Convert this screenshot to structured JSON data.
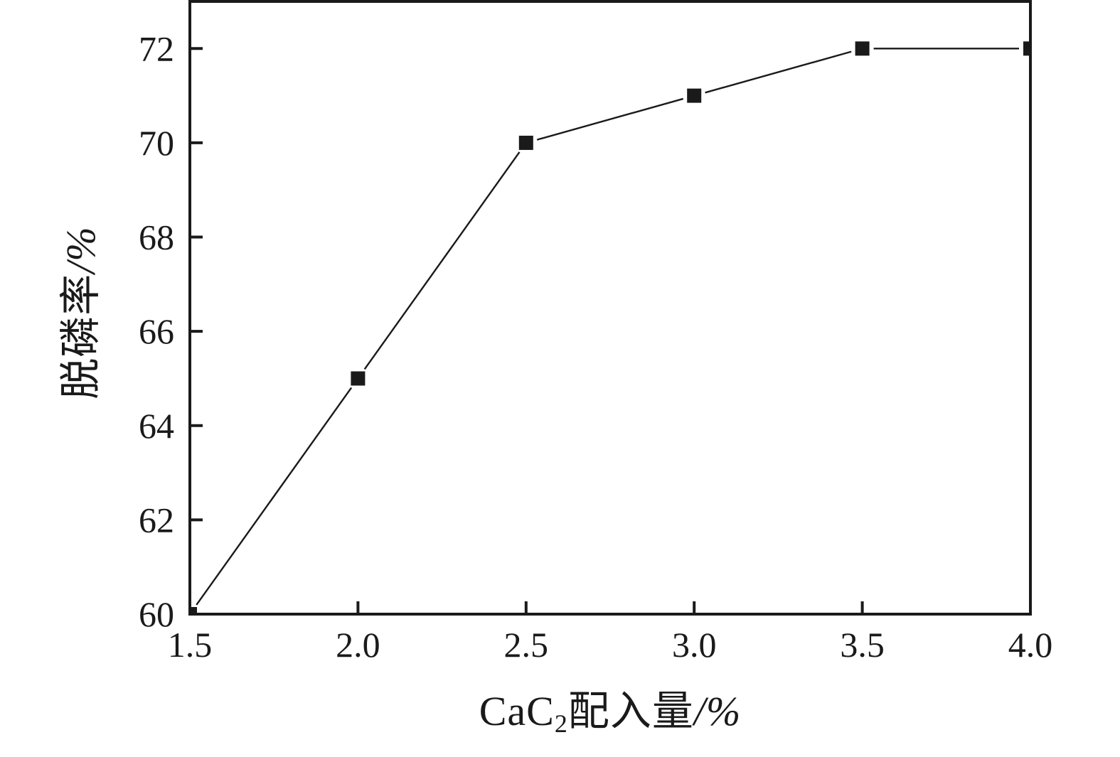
{
  "chart_data": {
    "type": "line",
    "series": [
      {
        "name": "脱磷率",
        "x": [
          1.5,
          2.0,
          2.5,
          3.0,
          3.5,
          4.0
        ],
        "y": [
          60,
          65,
          70,
          71,
          72,
          72
        ],
        "marker": "filled-square",
        "marker_size": 20,
        "color": "#1a1a1a"
      }
    ],
    "title": "",
    "xlabel": "CaC2配入量/%",
    "ylabel": "脱磷率/%",
    "xlim": [
      1.5,
      4.0
    ],
    "ylim": [
      60,
      73
    ],
    "x_ticks": [
      1.5,
      2.0,
      2.5,
      3.0,
      3.5,
      4.0
    ],
    "x_tick_labels": [
      "1.5",
      "2.0",
      "2.5",
      "3.0",
      "3.5",
      "4.0"
    ],
    "y_ticks": [
      60,
      62,
      64,
      66,
      68,
      70,
      72
    ],
    "y_tick_labels": [
      "60",
      "62",
      "64",
      "66",
      "68",
      "70",
      "72"
    ],
    "grid": false,
    "legend": "none",
    "tick_direction": "in",
    "box": true
  },
  "labels": {
    "xlabel_prefix": "CaC",
    "xlabel_sub": "2",
    "xlabel_cjk": "配入量",
    "xlabel_unit": "/%",
    "ylabel_cjk": "脱磷率",
    "ylabel_unit": "/%"
  },
  "colors": {
    "ink": "#1a1a1a",
    "background": "#ffffff"
  }
}
